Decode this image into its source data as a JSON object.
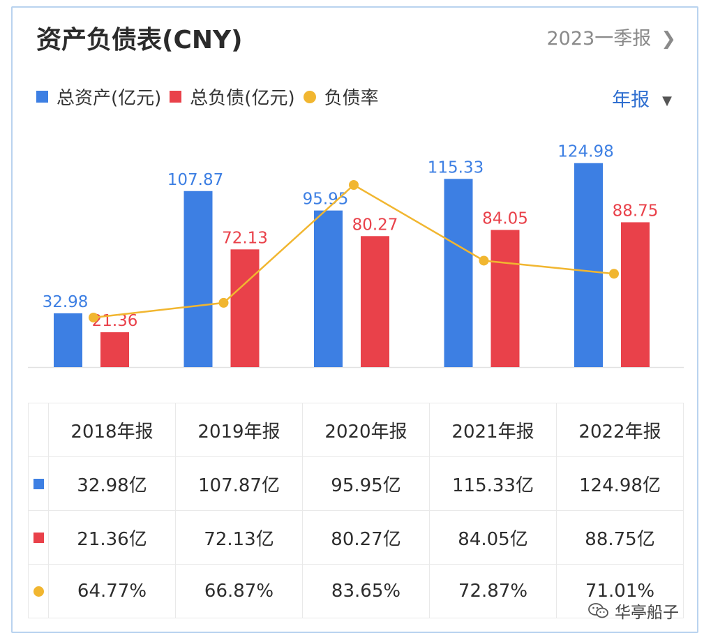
{
  "header": {
    "title": "资产负债表(CNY)",
    "report_link": "2023一季报",
    "chevron_icon": "chevron-right-icon"
  },
  "legend": {
    "assets": "总资产(亿元)",
    "liabilities": "总负债(亿元)",
    "ratio": "负债率"
  },
  "period_selector": {
    "label": "年报",
    "icon": "caret-down-icon"
  },
  "colors": {
    "assets": "#3d7fe3",
    "liabilities": "#e9414a",
    "ratio": "#f1b630",
    "accent": "#2f6fd0"
  },
  "chart_data": {
    "type": "bar",
    "title": "资产负债表(CNY)",
    "categories": [
      "2018年报",
      "2019年报",
      "2020年报",
      "2021年报",
      "2022年报"
    ],
    "series": [
      {
        "name": "总资产(亿元)",
        "type": "bar",
        "values": [
          32.98,
          107.87,
          95.95,
          115.33,
          124.98
        ],
        "labels": [
          "32.98",
          "107.87",
          "95.95",
          "115.33",
          "124.98"
        ]
      },
      {
        "name": "总负债(亿元)",
        "type": "bar",
        "values": [
          21.36,
          72.13,
          80.27,
          84.05,
          88.75
        ],
        "labels": [
          "21.36",
          "72.13",
          "80.27",
          "84.05",
          "88.75"
        ]
      },
      {
        "name": "负债率",
        "type": "line",
        "values": [
          64.77,
          66.87,
          83.65,
          72.87,
          71.01
        ],
        "unit": "%"
      }
    ],
    "ylim": [
      0,
      130
    ],
    "legend_position": "top-left"
  },
  "table": {
    "headers": [
      "2018年报",
      "2019年报",
      "2020年报",
      "2021年报",
      "2022年报"
    ],
    "rows": [
      {
        "marker": "assets-square-icon",
        "cells": [
          "32.98亿",
          "107.87亿",
          "95.95亿",
          "115.33亿",
          "124.98亿"
        ]
      },
      {
        "marker": "liabilities-square-icon",
        "cells": [
          "21.36亿",
          "72.13亿",
          "80.27亿",
          "84.05亿",
          "88.75亿"
        ]
      },
      {
        "marker": "ratio-dot-icon",
        "cells": [
          "64.77%",
          "66.87%",
          "83.65%",
          "72.87%",
          "71.01%"
        ]
      }
    ]
  },
  "watermark": {
    "text": "华亭船子",
    "icon": "wechat-icon"
  }
}
